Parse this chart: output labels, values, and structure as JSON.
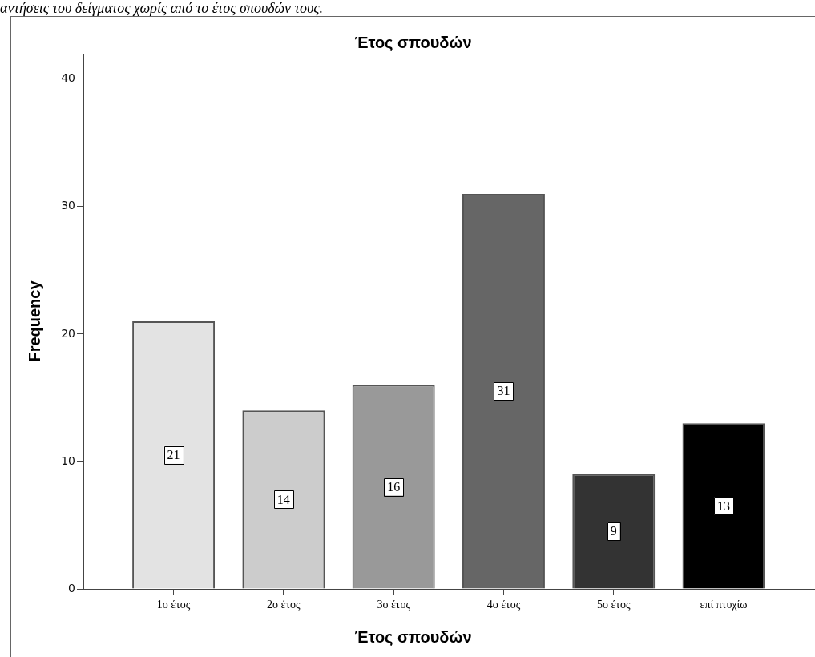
{
  "chart_data": {
    "type": "bar",
    "title": "Έτος σπουδών",
    "xlabel": "Έτος σπουδών",
    "ylabel": "Frequency",
    "annotations": [
      "αντήσεις του δείγματος χωρίς από το έτος σπουδών τους."
    ],
    "categories": [
      "1ο έτος",
      "2ο έτος",
      "3ο έτος",
      "4ο έτος",
      "5ο έτος",
      "επί πτυχίω"
    ],
    "values": [
      21,
      14,
      16,
      31,
      9,
      13
    ],
    "colors": [
      "#e3e3e3",
      "#cccccc",
      "#999999",
      "#666666",
      "#333333",
      "#000000"
    ],
    "ylim": [
      0,
      42
    ],
    "yticks": [
      0,
      10,
      20,
      30,
      40
    ],
    "data_labels": true
  }
}
